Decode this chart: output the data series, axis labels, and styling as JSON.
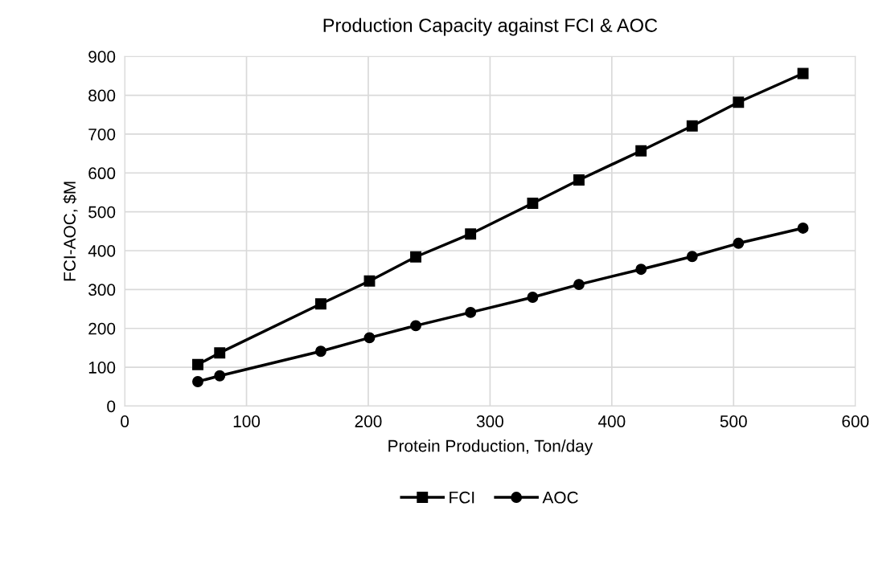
{
  "chart_data": {
    "type": "line",
    "title": "Production Capacity against FCI & AOC",
    "xlabel": "Protein Production, Ton/day",
    "ylabel": "FCI-AOC, $M",
    "x": [
      60,
      78,
      161,
      201,
      239,
      284,
      335,
      373,
      424,
      466,
      504,
      557
    ],
    "series": [
      {
        "name": "FCI",
        "color": "#000000",
        "marker": "square",
        "values": [
          107,
          137,
          263,
          322,
          384,
          443,
          522,
          582,
          657,
          721,
          782,
          856
        ]
      },
      {
        "name": "AOC",
        "color": "#000000",
        "marker": "circle",
        "values": [
          63,
          78,
          141,
          176,
          207,
          241,
          280,
          313,
          352,
          385,
          419,
          458
        ]
      }
    ],
    "xlim": [
      0,
      600
    ],
    "xticks": [
      0,
      100,
      200,
      300,
      400,
      500,
      600
    ],
    "ylim": [
      0,
      900
    ],
    "yticks": [
      0,
      100,
      200,
      300,
      400,
      500,
      600,
      700,
      800,
      900
    ],
    "grid": true,
    "legend": "bottom",
    "line_style": "solid"
  }
}
